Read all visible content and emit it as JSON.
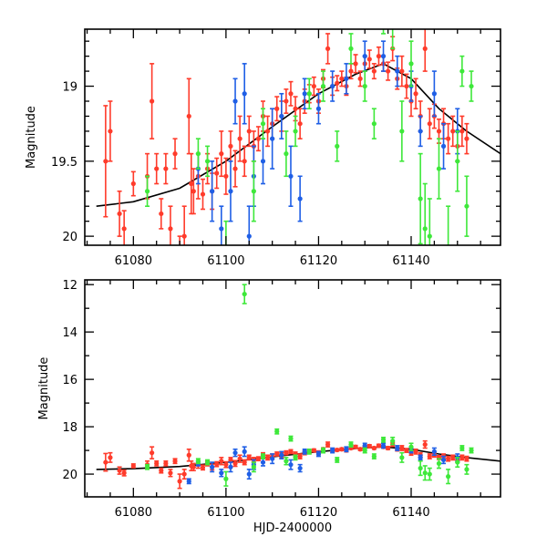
{
  "chart_data": [
    {
      "type": "scatter",
      "panel": "top",
      "xlabel": "",
      "ylabel": "Magnitude",
      "xlim": [
        61069.5,
        61159.3
      ],
      "ylim": [
        20.06,
        18.62
      ],
      "y_inverted": true,
      "xticks": [
        61080,
        61100,
        61120,
        61140
      ],
      "xtick_labels": [
        "61080",
        "61100",
        "61120",
        "61140"
      ],
      "yticks": [
        19,
        19.5,
        20
      ],
      "ytick_labels": [
        "19",
        "19.5",
        "20"
      ],
      "x_minor_step": 5,
      "y_minor_step": 0.1
    },
    {
      "type": "scatter",
      "panel": "bottom",
      "xlabel": "HJD-2400000",
      "ylabel": "Magnitude",
      "xlim": [
        61069.5,
        61159.3
      ],
      "ylim": [
        20.96,
        11.8
      ],
      "y_inverted": true,
      "xticks": [
        61080,
        61100,
        61120,
        61140
      ],
      "xtick_labels": [
        "61080",
        "61100",
        "61120",
        "61140"
      ],
      "yticks": [
        12,
        14,
        16,
        18,
        20
      ],
      "ytick_labels": [
        "12",
        "14",
        "16",
        "18",
        "20"
      ],
      "x_minor_step": 5,
      "y_minor_step": 1
    }
  ],
  "series": [
    {
      "name": "red",
      "color": "#ff3b2b",
      "points": [
        [
          61074,
          19.5,
          0.37
        ],
        [
          61075,
          19.3,
          0.2
        ],
        [
          61077,
          19.85,
          0.15
        ],
        [
          61078,
          19.95,
          0.12
        ],
        [
          61080,
          19.65,
          0.08
        ],
        [
          61083,
          19.6,
          0.15
        ],
        [
          61084,
          19.1,
          0.25
        ],
        [
          61085,
          19.55,
          0.1
        ],
        [
          61086,
          19.85,
          0.1
        ],
        [
          61087,
          19.55,
          0.1
        ],
        [
          61088,
          19.95,
          0.15
        ],
        [
          61089,
          19.45,
          0.1
        ],
        [
          61090,
          20.3,
          0.3
        ],
        [
          61091,
          20.0,
          0.2
        ],
        [
          61092,
          19.2,
          0.25
        ],
        [
          61092.5,
          19.65,
          0.2
        ],
        [
          61093,
          19.7,
          0.15
        ],
        [
          61094,
          19.6,
          0.15
        ],
        [
          61095,
          19.72,
          0.1
        ],
        [
          61096,
          19.55,
          0.1
        ],
        [
          61097,
          19.7,
          0.12
        ],
        [
          61098,
          19.58,
          0.1
        ],
        [
          61099,
          19.45,
          0.15
        ],
        [
          61100,
          19.6,
          0.12
        ],
        [
          61101,
          19.4,
          0.1
        ],
        [
          61102,
          19.55,
          0.12
        ],
        [
          61103,
          19.35,
          0.15
        ],
        [
          61104,
          19.5,
          0.1
        ],
        [
          61105,
          19.3,
          0.1
        ],
        [
          61106,
          19.4,
          0.1
        ],
        [
          61107,
          19.35,
          0.08
        ],
        [
          61108,
          19.2,
          0.1
        ],
        [
          61109,
          19.3,
          0.1
        ],
        [
          61110,
          19.25,
          0.1
        ],
        [
          61111,
          19.15,
          0.08
        ],
        [
          61112,
          19.2,
          0.1
        ],
        [
          61113,
          19.1,
          0.08
        ],
        [
          61114,
          19.05,
          0.08
        ],
        [
          61115,
          19.15,
          0.08
        ],
        [
          61116,
          19.25,
          0.1
        ],
        [
          61117,
          19.1,
          0.08
        ],
        [
          61118,
          19.05,
          0.06
        ],
        [
          61119,
          19.0,
          0.06
        ],
        [
          61120,
          19.1,
          0.08
        ],
        [
          61121,
          18.95,
          0.06
        ],
        [
          61122,
          18.75,
          0.1
        ],
        [
          61123,
          19.0,
          0.06
        ],
        [
          61124,
          18.98,
          0.05
        ],
        [
          61125,
          18.95,
          0.05
        ],
        [
          61126,
          19.0,
          0.06
        ],
        [
          61127,
          18.9,
          0.05
        ],
        [
          61128,
          18.85,
          0.06
        ],
        [
          61129,
          18.95,
          0.05
        ],
        [
          61130,
          18.85,
          0.05
        ],
        [
          61131,
          18.82,
          0.06
        ],
        [
          61132,
          18.9,
          0.05
        ],
        [
          61133,
          18.8,
          0.06
        ],
        [
          61134,
          18.85,
          0.05
        ],
        [
          61135,
          18.9,
          0.06
        ],
        [
          61136,
          18.75,
          0.08
        ],
        [
          61137,
          18.95,
          0.07
        ],
        [
          61138,
          18.9,
          0.1
        ],
        [
          61139,
          19.0,
          0.08
        ],
        [
          61140,
          19.1,
          0.1
        ],
        [
          61141,
          19.05,
          0.1
        ],
        [
          61142,
          19.2,
          0.1
        ],
        [
          61143,
          18.75,
          0.15
        ],
        [
          61144,
          19.25,
          0.1
        ],
        [
          61145,
          19.2,
          0.08
        ],
        [
          61146,
          19.3,
          0.08
        ],
        [
          61147,
          19.25,
          0.1
        ],
        [
          61148,
          19.35,
          0.1
        ],
        [
          61149,
          19.3,
          0.1
        ],
        [
          61150,
          19.4,
          0.1
        ],
        [
          61151,
          19.3,
          0.1
        ],
        [
          61152,
          19.35,
          0.1
        ]
      ]
    },
    {
      "name": "blue",
      "color": "#1f5fe6",
      "points": [
        [
          61092,
          20.3,
          0.1
        ],
        [
          61094,
          19.55,
          0.1
        ],
        [
          61097,
          19.7,
          0.2
        ],
        [
          61099,
          19.95,
          0.15
        ],
        [
          61101,
          19.7,
          0.2
        ],
        [
          61102,
          19.1,
          0.15
        ],
        [
          61104,
          19.05,
          0.2
        ],
        [
          61105,
          20.0,
          0.2
        ],
        [
          61106,
          19.6,
          0.2
        ],
        [
          61108,
          19.5,
          0.15
        ],
        [
          61110,
          19.35,
          0.2
        ],
        [
          61112,
          19.2,
          0.15
        ],
        [
          61114,
          19.6,
          0.2
        ],
        [
          61116,
          19.75,
          0.15
        ],
        [
          61117,
          19.05,
          0.1
        ],
        [
          61120,
          19.15,
          0.1
        ],
        [
          61123,
          19.0,
          0.1
        ],
        [
          61126,
          18.95,
          0.1
        ],
        [
          61130,
          18.8,
          0.1
        ],
        [
          61134,
          18.8,
          0.1
        ],
        [
          61137,
          18.9,
          0.1
        ],
        [
          61140,
          19.0,
          0.1
        ],
        [
          61142,
          19.3,
          0.1
        ],
        [
          61145,
          19.05,
          0.15
        ],
        [
          61147,
          19.4,
          0.15
        ],
        [
          61150,
          19.3,
          0.15
        ]
      ]
    },
    {
      "name": "green",
      "color": "#3ee83a",
      "points": [
        [
          61083,
          19.7,
          0.1
        ],
        [
          61094,
          19.45,
          0.1
        ],
        [
          61096,
          19.5,
          0.1
        ],
        [
          61100,
          20.2,
          0.3
        ],
        [
          61104,
          12.4,
          0.4
        ],
        [
          61106,
          19.7,
          0.2
        ],
        [
          61108,
          19.25,
          0.1
        ],
        [
          61111,
          18.2,
          0.1
        ],
        [
          61113,
          19.45,
          0.15
        ],
        [
          61114,
          18.5,
          0.1
        ],
        [
          61115,
          19.3,
          0.1
        ],
        [
          61118,
          19.05,
          0.1
        ],
        [
          61121,
          19.0,
          0.1
        ],
        [
          61124,
          19.4,
          0.1
        ],
        [
          61127,
          18.75,
          0.1
        ],
        [
          61130,
          19.0,
          0.1
        ],
        [
          61132,
          19.25,
          0.1
        ],
        [
          61134,
          18.55,
          0.1
        ],
        [
          61136,
          18.6,
          0.15
        ],
        [
          61138,
          19.3,
          0.2
        ],
        [
          61140,
          18.85,
          0.15
        ],
        [
          61142,
          19.75,
          0.3
        ],
        [
          61143,
          19.95,
          0.3
        ],
        [
          61144,
          20.0,
          0.25
        ],
        [
          61146,
          19.55,
          0.2
        ],
        [
          61148,
          20.1,
          0.3
        ],
        [
          61150,
          19.5,
          0.2
        ],
        [
          61151,
          18.9,
          0.1
        ],
        [
          61152,
          19.8,
          0.2
        ],
        [
          61153,
          19.0,
          0.1
        ]
      ]
    }
  ],
  "model_curve": [
    [
      61072,
      19.8
    ],
    [
      61080,
      19.77
    ],
    [
      61090,
      19.68
    ],
    [
      61100,
      19.5
    ],
    [
      61110,
      19.27
    ],
    [
      61120,
      19.05
    ],
    [
      61128,
      18.92
    ],
    [
      61134,
      18.85
    ],
    [
      61140,
      18.95
    ],
    [
      61146,
      19.15
    ],
    [
      61152,
      19.3
    ],
    [
      61159.3,
      19.45
    ]
  ]
}
